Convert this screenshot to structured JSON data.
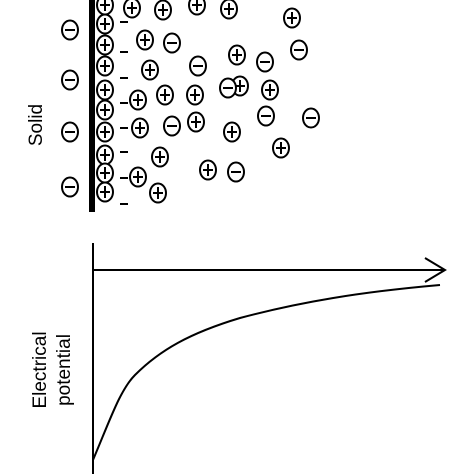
{
  "labels": {
    "solid": "Solid",
    "potential_line1": "Electrical",
    "potential_line2": "potential"
  }
}
